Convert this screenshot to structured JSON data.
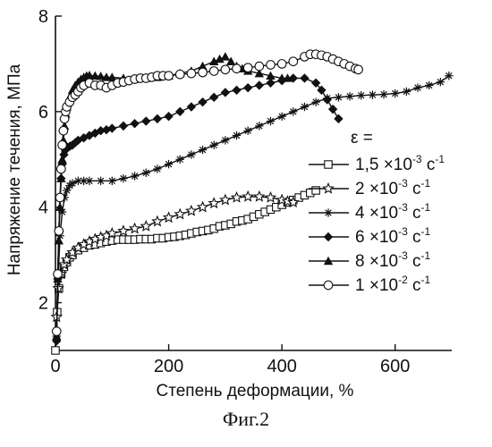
{
  "chart_data": {
    "type": "scatter",
    "xlabel": "Степень деформации, %",
    "ylabel": "Напряжение течения, МПа",
    "xlim": [
      0,
      700
    ],
    "ylim": [
      1,
      8
    ],
    "xticks": [
      0,
      200,
      400,
      600
    ],
    "yticks": [
      2,
      4,
      6,
      8
    ],
    "legend_title": "ε =",
    "legend_placement": "right",
    "grid": false,
    "series": [
      {
        "name": "1,5 ×10-3 с-1",
        "legend": {
          "mantissa": "1,5 ×10",
          "exp1": "-3",
          "unit": "с",
          "exp2": "-1"
        },
        "marker": "square-open",
        "x": [
          0,
          3,
          6,
          10,
          15,
          20,
          25,
          30,
          40,
          50,
          60,
          70,
          80,
          90,
          100,
          110,
          120,
          130,
          140,
          150,
          160,
          170,
          180,
          190,
          200,
          210,
          220,
          230,
          240,
          250,
          260,
          270,
          280,
          290,
          300,
          310,
          320,
          330,
          340,
          350,
          360,
          370,
          380,
          390,
          400,
          410,
          420,
          430,
          440,
          450,
          460
        ],
        "y": [
          1.0,
          1.8,
          2.3,
          2.6,
          2.75,
          2.85,
          2.95,
          3.0,
          3.1,
          3.15,
          3.2,
          3.22,
          3.25,
          3.28,
          3.3,
          3.32,
          3.32,
          3.32,
          3.32,
          3.33,
          3.33,
          3.33,
          3.35,
          3.35,
          3.37,
          3.38,
          3.4,
          3.42,
          3.45,
          3.48,
          3.5,
          3.52,
          3.55,
          3.6,
          3.62,
          3.65,
          3.7,
          3.72,
          3.75,
          3.8,
          3.85,
          3.9,
          3.95,
          4.0,
          4.05,
          4.1,
          4.15,
          4.2,
          4.25,
          4.3,
          4.35
        ]
      },
      {
        "name": "2 ×10-3 с-1",
        "legend": {
          "mantissa": "2 ×10",
          "exp1": "-3",
          "unit": "с",
          "exp2": "-1"
        },
        "marker": "star-open",
        "x": [
          2,
          5,
          10,
          15,
          20,
          30,
          40,
          50,
          60,
          70,
          80,
          90,
          100,
          120,
          140,
          160,
          180,
          200,
          220,
          240,
          260,
          280,
          300,
          320,
          340,
          360,
          380,
          400,
          410,
          420
        ],
        "y": [
          1.7,
          2.3,
          2.6,
          2.8,
          2.9,
          3.05,
          3.15,
          3.22,
          3.28,
          3.33,
          3.37,
          3.4,
          3.45,
          3.5,
          3.55,
          3.6,
          3.7,
          3.78,
          3.85,
          3.92,
          4.0,
          4.08,
          4.15,
          4.2,
          4.22,
          4.22,
          4.2,
          4.15,
          4.12,
          4.1
        ]
      },
      {
        "name": "4 ×10-3 с-1",
        "legend": {
          "mantissa": "4 ×10",
          "exp1": "-3",
          "unit": "с",
          "exp2": "-1"
        },
        "marker": "asterisk",
        "x": [
          2,
          5,
          8,
          12,
          16,
          20,
          25,
          30,
          40,
          50,
          60,
          80,
          100,
          120,
          140,
          160,
          180,
          200,
          220,
          240,
          260,
          280,
          300,
          320,
          340,
          360,
          380,
          400,
          420,
          440,
          460,
          480,
          500,
          520,
          540,
          560,
          580,
          600,
          620,
          640,
          660,
          680,
          695
        ],
        "y": [
          1.3,
          2.6,
          3.4,
          3.9,
          4.2,
          4.35,
          4.45,
          4.5,
          4.55,
          4.55,
          4.55,
          4.55,
          4.55,
          4.6,
          4.65,
          4.72,
          4.8,
          4.9,
          5.0,
          5.1,
          5.2,
          5.3,
          5.4,
          5.5,
          5.6,
          5.7,
          5.8,
          5.9,
          6.0,
          6.1,
          6.2,
          6.28,
          6.3,
          6.32,
          6.34,
          6.35,
          6.36,
          6.38,
          6.42,
          6.5,
          6.55,
          6.62,
          6.75
        ]
      },
      {
        "name": "6 ×10-3 с-1",
        "legend": {
          "mantissa": "6 ×10",
          "exp1": "-3",
          "unit": "с",
          "exp2": "-1"
        },
        "marker": "diamond-filled",
        "x": [
          2,
          4,
          6,
          8,
          10,
          12,
          15,
          18,
          22,
          26,
          30,
          35,
          40,
          50,
          60,
          70,
          80,
          90,
          100,
          120,
          140,
          160,
          180,
          200,
          220,
          240,
          260,
          280,
          300,
          320,
          340,
          360,
          380,
          400,
          420,
          440,
          460,
          470,
          480,
          490,
          500
        ],
        "y": [
          1.2,
          2.5,
          3.5,
          4.2,
          4.6,
          4.9,
          5.1,
          5.2,
          5.25,
          5.28,
          5.3,
          5.35,
          5.4,
          5.45,
          5.5,
          5.55,
          5.6,
          5.62,
          5.65,
          5.7,
          5.75,
          5.8,
          5.85,
          5.9,
          6.0,
          6.1,
          6.2,
          6.3,
          6.4,
          6.45,
          6.5,
          6.55,
          6.6,
          6.65,
          6.7,
          6.7,
          6.6,
          6.45,
          6.25,
          6.05,
          5.85
        ]
      },
      {
        "name": "8 ×10-3 с-1",
        "legend": {
          "mantissa": "8 ×10",
          "exp1": "-3",
          "unit": "с",
          "exp2": "-1"
        },
        "marker": "triangle-filled",
        "x": [
          2,
          4,
          6,
          8,
          10,
          12,
          14,
          16,
          18,
          20,
          25,
          30,
          35,
          40,
          45,
          50,
          55,
          60,
          70,
          80,
          90,
          100,
          120,
          140,
          160,
          180,
          200,
          220,
          240,
          260,
          280,
          290,
          300,
          310,
          320,
          330,
          340,
          360,
          380,
          400,
          410
        ],
        "y": [
          1.3,
          2.5,
          3.3,
          4.0,
          4.6,
          5.0,
          5.4,
          5.7,
          5.95,
          6.1,
          6.3,
          6.45,
          6.55,
          6.62,
          6.68,
          6.72,
          6.75,
          6.76,
          6.75,
          6.74,
          6.72,
          6.72,
          6.7,
          6.68,
          6.7,
          6.72,
          6.75,
          6.8,
          6.85,
          6.95,
          7.05,
          7.1,
          7.15,
          7.05,
          6.95,
          6.9,
          6.85,
          6.8,
          6.75,
          6.7,
          6.7
        ]
      },
      {
        "name": "1 ×10-2 с-1",
        "legend": {
          "mantissa": "1 ×10",
          "exp1": "-2",
          "unit": "с",
          "exp2": "-1"
        },
        "marker": "circle-open",
        "x": [
          2,
          4,
          6,
          8,
          10,
          12,
          14,
          16,
          18,
          20,
          25,
          30,
          35,
          40,
          45,
          50,
          60,
          70,
          80,
          90,
          100,
          110,
          120,
          130,
          140,
          150,
          160,
          170,
          180,
          190,
          200,
          220,
          240,
          260,
          280,
          300,
          320,
          340,
          360,
          380,
          400,
          420,
          440,
          450,
          460,
          470,
          480,
          490,
          500,
          510,
          520,
          530,
          535
        ],
        "y": [
          1.4,
          2.6,
          3.5,
          4.2,
          4.8,
          5.3,
          5.6,
          5.85,
          6.0,
          6.1,
          6.2,
          6.3,
          6.35,
          6.42,
          6.5,
          6.55,
          6.6,
          6.55,
          6.55,
          6.5,
          6.55,
          6.6,
          6.62,
          6.65,
          6.68,
          6.7,
          6.7,
          6.72,
          6.75,
          6.75,
          6.75,
          6.78,
          6.8,
          6.82,
          6.85,
          6.88,
          6.9,
          6.92,
          6.95,
          6.98,
          7.0,
          7.05,
          7.15,
          7.2,
          7.2,
          7.18,
          7.15,
          7.1,
          7.05,
          7.0,
          6.95,
          6.9,
          6.88
        ]
      }
    ]
  },
  "caption": "Фиг.2"
}
